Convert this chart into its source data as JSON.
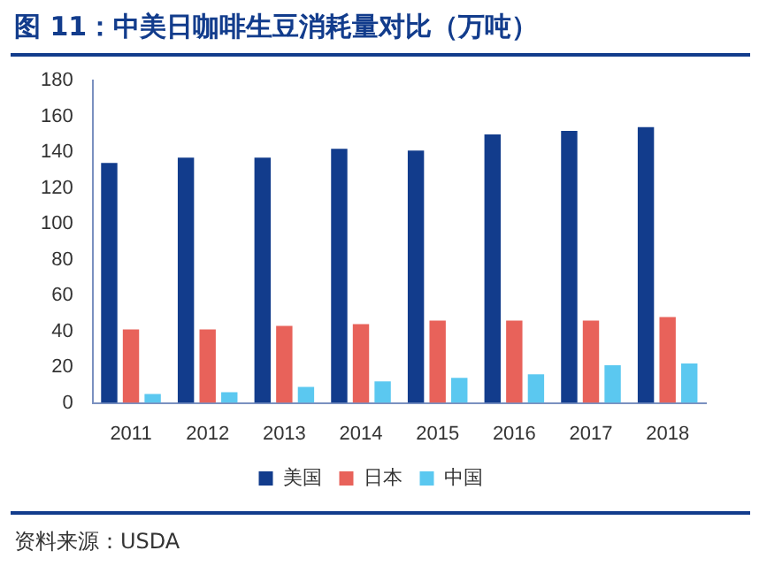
{
  "chart_data": {
    "type": "bar",
    "title": "图 11：中美日咖啡生豆消耗量对比（万吨）",
    "categories": [
      "2011",
      "2012",
      "2013",
      "2014",
      "2015",
      "2016",
      "2017",
      "2018"
    ],
    "series": [
      {
        "name": "美国",
        "color": "#123c8c",
        "values": [
          134,
          137,
          137,
          142,
          141,
          150,
          152,
          154
        ]
      },
      {
        "name": "日本",
        "color": "#e8625a",
        "values": [
          41,
          41,
          43,
          44,
          46,
          46,
          46,
          48
        ]
      },
      {
        "name": "中国",
        "color": "#5bc8f0",
        "values": [
          5,
          6,
          9,
          12,
          14,
          16,
          21,
          22
        ]
      }
    ],
    "ylim": [
      0,
      180
    ],
    "yticks": [
      0,
      20,
      40,
      60,
      80,
      100,
      120,
      140,
      160,
      180
    ],
    "grid": false,
    "legend": "bottom",
    "annotations": [
      "资料来源：USDA"
    ]
  }
}
